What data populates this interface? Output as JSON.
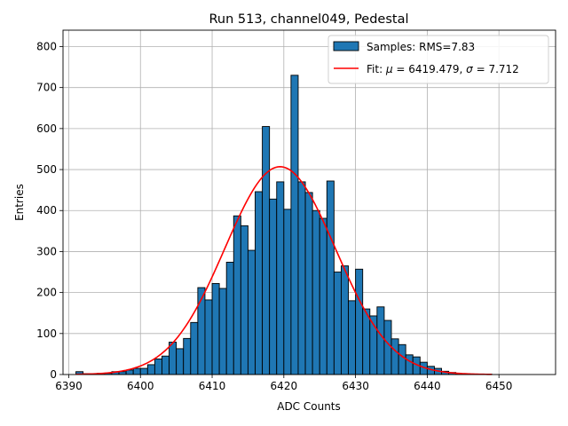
{
  "chart_data": {
    "type": "bar",
    "title": "Run 513, channel049, Pedestal",
    "xlabel": "ADC Counts",
    "ylabel": "Entries",
    "xlim": [
      6389.2,
      6457.9
    ],
    "ylim": [
      0,
      840
    ],
    "xticks": [
      6390,
      6400,
      6410,
      6420,
      6430,
      6440,
      6450
    ],
    "yticks": [
      0,
      100,
      200,
      300,
      400,
      500,
      600,
      700,
      800
    ],
    "grid": true,
    "legend_position": "upper right",
    "histogram": {
      "name": "Samples: RMS=7.83",
      "color": "#1f77b4",
      "edgecolor": "#000000",
      "bin_width": 1,
      "bin_edges_start": [
        6391,
        6392,
        6393,
        6394,
        6395,
        6396,
        6397,
        6398,
        6399,
        6400,
        6401,
        6402,
        6403,
        6404,
        6405,
        6406,
        6407,
        6408,
        6409,
        6410,
        6411,
        6412,
        6413,
        6414,
        6415,
        6416,
        6417,
        6418,
        6419,
        6420,
        6421,
        6422,
        6423,
        6424,
        6425,
        6426,
        6427,
        6428,
        6429,
        6430,
        6431,
        6432,
        6433,
        6434,
        6435,
        6436,
        6437,
        6438,
        6439,
        6440,
        6441,
        6442,
        6443,
        6444,
        6445,
        6446,
        6447,
        6448,
        6449
      ],
      "counts": [
        7,
        2,
        2,
        3,
        3,
        7,
        7,
        11,
        15,
        15,
        24,
        38,
        45,
        79,
        63,
        88,
        127,
        212,
        182,
        222,
        210,
        274,
        387,
        363,
        303,
        446,
        605,
        428,
        470,
        403,
        730,
        470,
        444,
        400,
        381,
        472,
        250,
        265,
        180,
        257,
        160,
        143,
        165,
        132,
        87,
        73,
        48,
        43,
        30,
        20,
        15,
        8,
        5,
        2,
        2,
        1,
        1,
        1,
        0
      ]
    },
    "fit": {
      "name": "Fit: μ = 6419.479, σ = 7.712",
      "color": "#ff0000",
      "mu": 6419.479,
      "sigma": 7.712,
      "amplitude": 507,
      "x_range": [
        6391,
        6449
      ]
    },
    "legend": {
      "hist_label": "Samples: RMS=7.83",
      "fit_prefix": "Fit: ",
      "fit_mu_symbol": "μ",
      "fit_mu_text": " = 6419.479, ",
      "fit_sigma_symbol": "σ",
      "fit_sigma_text": " = 7.712"
    }
  }
}
